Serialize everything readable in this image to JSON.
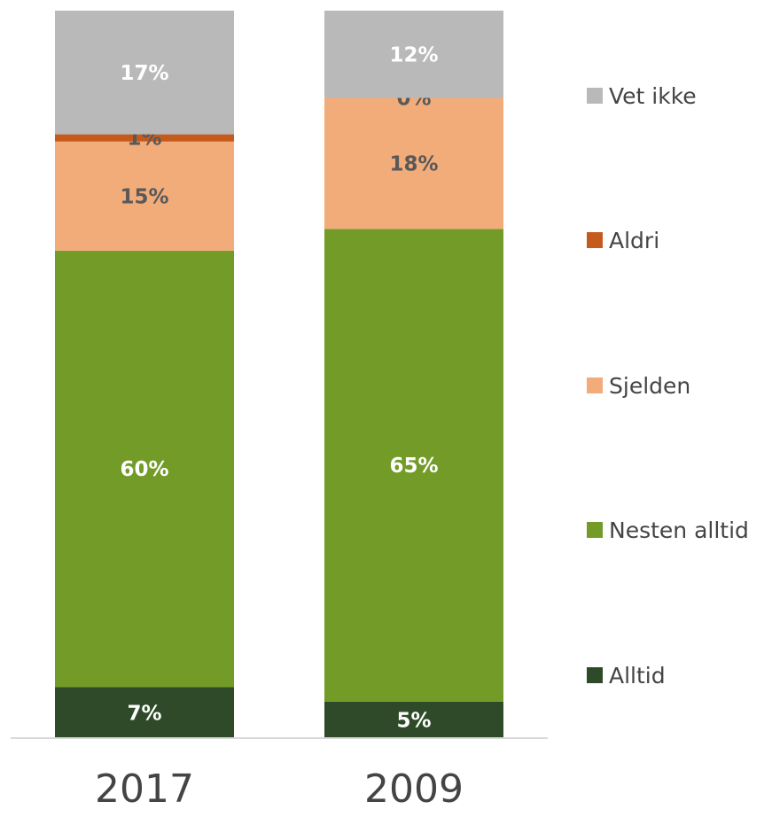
{
  "chart_data": {
    "type": "bar",
    "stacked": true,
    "percent_stacked": true,
    "categories": [
      "2017",
      "2009"
    ],
    "series": [
      {
        "name": "Alltid",
        "color": "#2e4a28",
        "values": [
          7,
          5
        ],
        "labels": [
          "7%",
          "5%"
        ],
        "label_color": "#ffffff"
      },
      {
        "name": "Nesten alltid",
        "color": "#739b28",
        "values": [
          60,
          65
        ],
        "labels": [
          "60%",
          "65%"
        ],
        "label_color": "#ffffff"
      },
      {
        "name": "Sjelden",
        "color": "#f2ac7a",
        "values": [
          15,
          18
        ],
        "labels": [
          "15%",
          "18%"
        ],
        "label_color": "#595959"
      },
      {
        "name": "Aldri",
        "color": "#c55a1d",
        "values": [
          1,
          0
        ],
        "labels": [
          "1%",
          "0%"
        ],
        "label_color": "#595959"
      },
      {
        "name": "Vet ikke",
        "color": "#b9b9b9",
        "values": [
          17,
          12
        ],
        "labels": [
          "17%",
          "12%"
        ],
        "label_color": "#ffffff"
      }
    ],
    "legend_position": "right",
    "legend_order": [
      "Vet ikke",
      "Aldri",
      "Sjelden",
      "Nesten alltid",
      "Alltid"
    ],
    "grid": false,
    "ylim": [
      0,
      100
    ]
  }
}
